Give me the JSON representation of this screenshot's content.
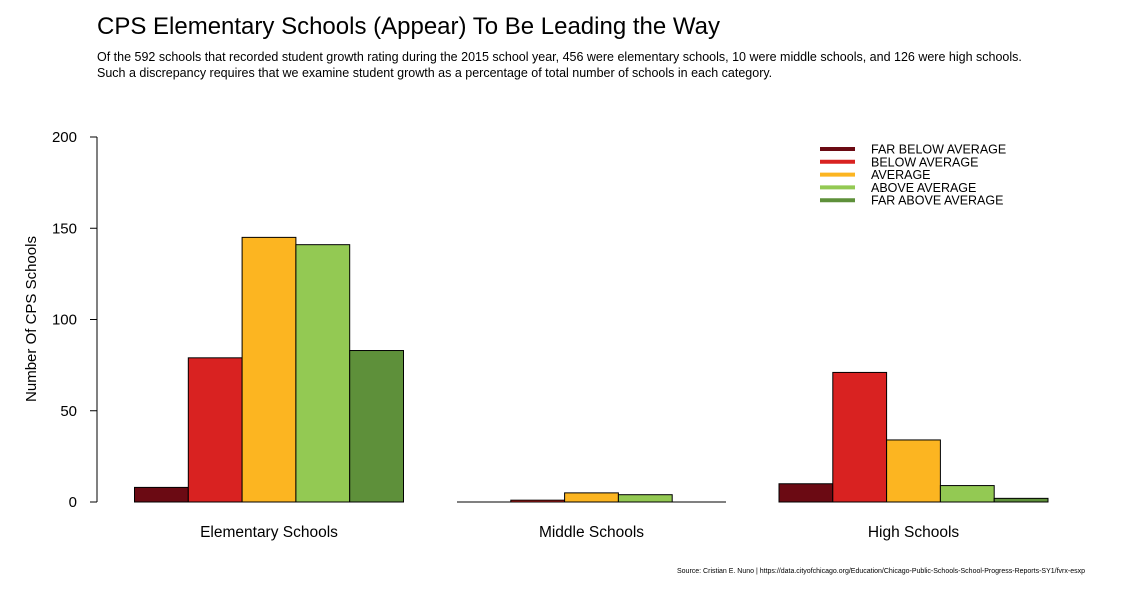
{
  "title": "CPS Elementary Schools (Appear) To Be Leading the Way",
  "subtitle": [
    "Of the 592 schools that recorded student growth rating during the 2015 school year, 456 were elementary schools, 10 were middle schools, and 126 were high schools.",
    "Such a discrepancy requires that we examine student growth as a percentage of total number of schools in each category."
  ],
  "source": "Source: Cristian E. Nuno | https://data.cityofchicago.org/Education/Chicago-Public-Schools-School-Progress-Reports-SY1/fvrx-esxp",
  "chart_data": {
    "type": "bar",
    "title": "CPS Elementary Schools (Appear) To Be Leading the Way",
    "xlabel": "",
    "ylabel": "Number Of CPS Schools",
    "ylim": [
      0,
      200
    ],
    "yticks": [
      0,
      50,
      100,
      150,
      200
    ],
    "categories": [
      "Elementary Schools",
      "Middle Schools",
      "High Schools"
    ],
    "series": [
      {
        "name": "FAR BELOW AVERAGE",
        "color": "#6b0a13",
        "values": [
          8,
          0,
          10
        ]
      },
      {
        "name": "BELOW AVERAGE",
        "color": "#d92221",
        "values": [
          79,
          1,
          71
        ]
      },
      {
        "name": "AVERAGE",
        "color": "#fcb521",
        "values": [
          145,
          5,
          34
        ]
      },
      {
        "name": "ABOVE AVERAGE",
        "color": "#93c953",
        "values": [
          141,
          4,
          9
        ]
      },
      {
        "name": "FAR ABOVE AVERAGE",
        "color": "#5e903a",
        "values": [
          83,
          0,
          2
        ]
      }
    ],
    "legend_position": "top-right",
    "grid": false
  }
}
